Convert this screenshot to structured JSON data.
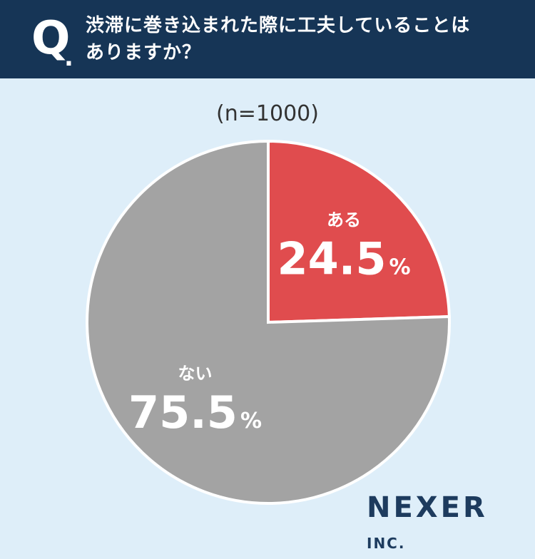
{
  "header": {
    "q_mark": "Q",
    "q_dot": ".",
    "question_line1": "渋滞に巻き込まれた際に工夫していることは",
    "question_line2": "ありますか？"
  },
  "sample_label": "(n=1000)",
  "colors": {
    "header_bg": "#163556",
    "background": "#deeef9",
    "yes": "#e04c4e",
    "no": "#a3a3a3",
    "brand": "#1d3b5e"
  },
  "chart_data": {
    "type": "pie",
    "start": "12 o'clock, clockwise",
    "slices": [
      {
        "label": "ある",
        "value": 24.5,
        "display": "24.5",
        "unit": "%",
        "color": "#e04c4e"
      },
      {
        "label": "ない",
        "value": 75.5,
        "display": "75.5",
        "unit": "%",
        "color": "#a3a3a3"
      }
    ]
  },
  "brand": {
    "name": "NEXER",
    "suffix": "INC."
  }
}
